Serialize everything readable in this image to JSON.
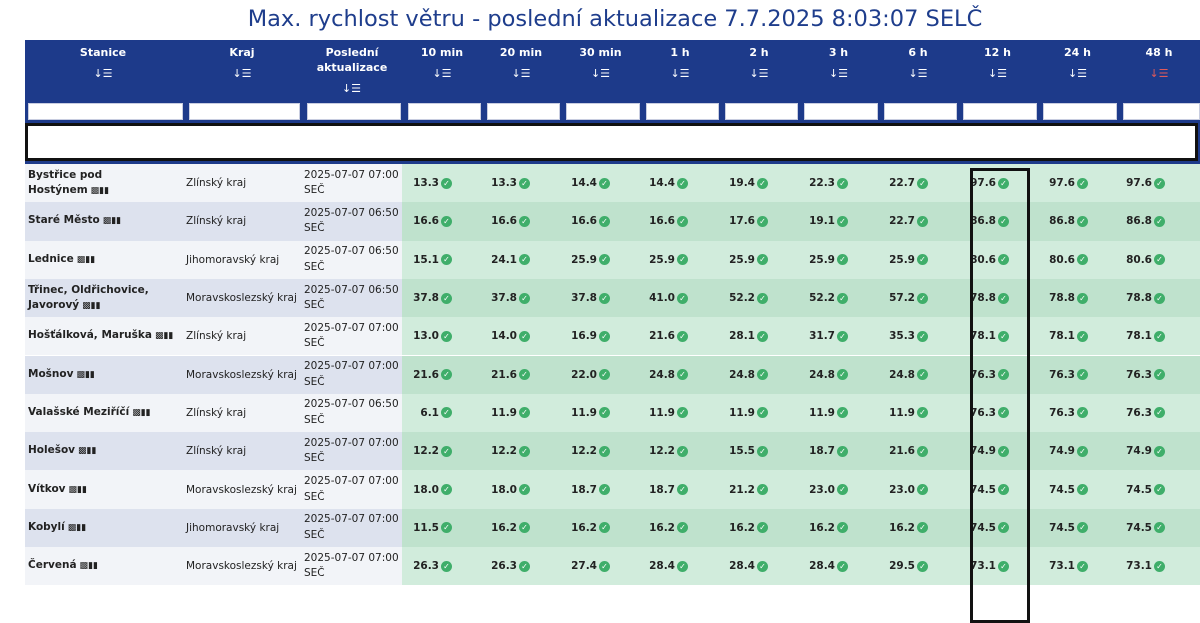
{
  "page_title": "Max. rychlost větru - poslední aktualizace 7.7.2025 8:03:07 SELČ",
  "header": {
    "columns": [
      {
        "label": "Stanice",
        "sort_icon": "sort-desc-icon"
      },
      {
        "label": "Kraj",
        "sort_icon": "sort-desc-icon"
      },
      {
        "label": "Poslední aktualizace",
        "sort_icon": "sort-desc-icon"
      },
      {
        "label": "10 min",
        "sort_icon": "sort-desc-icon"
      },
      {
        "label": "20 min",
        "sort_icon": "sort-desc-icon"
      },
      {
        "label": "30 min",
        "sort_icon": "sort-desc-icon"
      },
      {
        "label": "1 h",
        "sort_icon": "sort-desc-icon"
      },
      {
        "label": "2 h",
        "sort_icon": "sort-desc-icon"
      },
      {
        "label": "3 h",
        "sort_icon": "sort-desc-icon"
      },
      {
        "label": "6 h",
        "sort_icon": "sort-desc-icon"
      },
      {
        "label": "12 h",
        "sort_icon": "sort-desc-icon"
      },
      {
        "label": "24 h",
        "sort_icon": "sort-desc-icon"
      },
      {
        "label": "48 h",
        "sort_icon": "sort-desc-active-icon"
      }
    ]
  },
  "colors": {
    "header_bg": "#1d3a8a",
    "title": "#1e3d8c",
    "value_bg_odd": "#d1ecdc",
    "value_bg_even": "#bfe2cd",
    "check": "#3fae6a",
    "active_sort": "#e05a5a"
  },
  "rows": [
    {
      "station": "Bystřice pod Hostýnem",
      "kraj": "Zlínský kraj",
      "updated": "2025-07-07 07:00 SEČ",
      "values": [
        "13.3",
        "13.3",
        "14.4",
        "14.4",
        "19.4",
        "22.3",
        "22.7",
        "97.6",
        "97.6",
        "97.6"
      ]
    },
    {
      "station": "Staré Město",
      "kraj": "Zlínský kraj",
      "updated": "2025-07-07 06:50 SEČ",
      "values": [
        "16.6",
        "16.6",
        "16.6",
        "16.6",
        "17.6",
        "19.1",
        "22.7",
        "86.8",
        "86.8",
        "86.8"
      ]
    },
    {
      "station": "Lednice",
      "kraj": "Jihomoravský kraj",
      "updated": "2025-07-07 06:50 SEČ",
      "values": [
        "15.1",
        "24.1",
        "25.9",
        "25.9",
        "25.9",
        "25.9",
        "25.9",
        "80.6",
        "80.6",
        "80.6"
      ]
    },
    {
      "station": "Třinec, Oldřichovice, Javorový",
      "kraj": "Moravskoslezský kraj",
      "updated": "2025-07-07 06:50 SEČ",
      "values": [
        "37.8",
        "37.8",
        "37.8",
        "41.0",
        "52.2",
        "52.2",
        "57.2",
        "78.8",
        "78.8",
        "78.8"
      ]
    },
    {
      "station": "Hošťálková, Maruška",
      "kraj": "Zlínský kraj",
      "updated": "2025-07-07 07:00 SEČ",
      "values": [
        "13.0",
        "14.0",
        "16.9",
        "21.6",
        "28.1",
        "31.7",
        "35.3",
        "78.1",
        "78.1",
        "78.1"
      ]
    },
    {
      "station": "Mošnov",
      "kraj": "Moravskoslezský kraj",
      "updated": "2025-07-07 07:00 SEČ",
      "values": [
        "21.6",
        "21.6",
        "22.0",
        "24.8",
        "24.8",
        "24.8",
        "24.8",
        "76.3",
        "76.3",
        "76.3"
      ]
    },
    {
      "station": "Valašské Meziříčí",
      "kraj": "Zlínský kraj",
      "updated": "2025-07-07 06:50 SEČ",
      "values": [
        "6.1",
        "11.9",
        "11.9",
        "11.9",
        "11.9",
        "11.9",
        "11.9",
        "76.3",
        "76.3",
        "76.3"
      ]
    },
    {
      "station": "Holešov",
      "kraj": "Zlínský kraj",
      "updated": "2025-07-07 07:00 SEČ",
      "values": [
        "12.2",
        "12.2",
        "12.2",
        "12.2",
        "15.5",
        "18.7",
        "21.6",
        "74.9",
        "74.9",
        "74.9"
      ]
    },
    {
      "station": "Vítkov",
      "kraj": "Moravskoslezský kraj",
      "updated": "2025-07-07 07:00 SEČ",
      "values": [
        "18.0",
        "18.0",
        "18.7",
        "18.7",
        "21.2",
        "23.0",
        "23.0",
        "74.5",
        "74.5",
        "74.5"
      ]
    },
    {
      "station": "Kobylí",
      "kraj": "Jihomoravský kraj",
      "updated": "2025-07-07 07:00 SEČ",
      "values": [
        "11.5",
        "16.2",
        "16.2",
        "16.2",
        "16.2",
        "16.2",
        "16.2",
        "74.5",
        "74.5",
        "74.5"
      ]
    },
    {
      "station": "Červená",
      "kraj": "Moravskoslezský kraj",
      "updated": "2025-07-07 07:00 SEČ",
      "values": [
        "26.3",
        "26.3",
        "27.4",
        "28.4",
        "28.4",
        "28.4",
        "29.5",
        "73.1",
        "73.1",
        "73.1"
      ]
    }
  ]
}
